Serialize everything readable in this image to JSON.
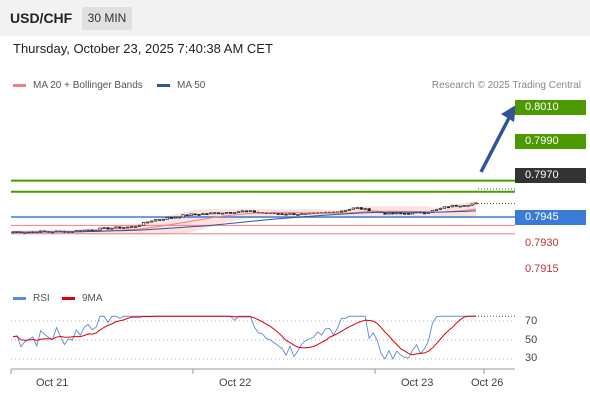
{
  "header": {
    "symbol": "USD/CHF",
    "timeframe": "30 MIN"
  },
  "datetime": "Thursday, October 23, 2025 7:40:38 AM CET",
  "legend": {
    "ma20": {
      "label": "MA 20 + Bollinger Bands",
      "color": "#f08080"
    },
    "ma50": {
      "label": "MA 50",
      "color": "#2f5597"
    }
  },
  "source": "Research © 2025 Trading Central",
  "price_levels": [
    {
      "value": "0.8010",
      "color": "#4c9a00",
      "style": "boxed"
    },
    {
      "value": "0.7990",
      "color": "#4c9a00",
      "style": "boxed"
    },
    {
      "value": "0.7970",
      "color": "#333333",
      "style": "boxed"
    },
    {
      "value": "0.7945",
      "color": "#3a7bd5",
      "style": "boxed"
    },
    {
      "value": "0.7930",
      "color": "#e06060",
      "style": "text"
    },
    {
      "value": "0.7915",
      "color": "#e06060",
      "style": "text"
    }
  ],
  "rsi": {
    "legend_rsi": "RSI",
    "legend_9ma": "9MA",
    "rsi_color": "#5b8bd9",
    "ma_color": "#e00000",
    "ticks": [
      "70",
      "50",
      "30"
    ]
  },
  "x_labels": [
    "Oct 21",
    "Oct 22",
    "Oct 23",
    "Oct 26"
  ]
}
